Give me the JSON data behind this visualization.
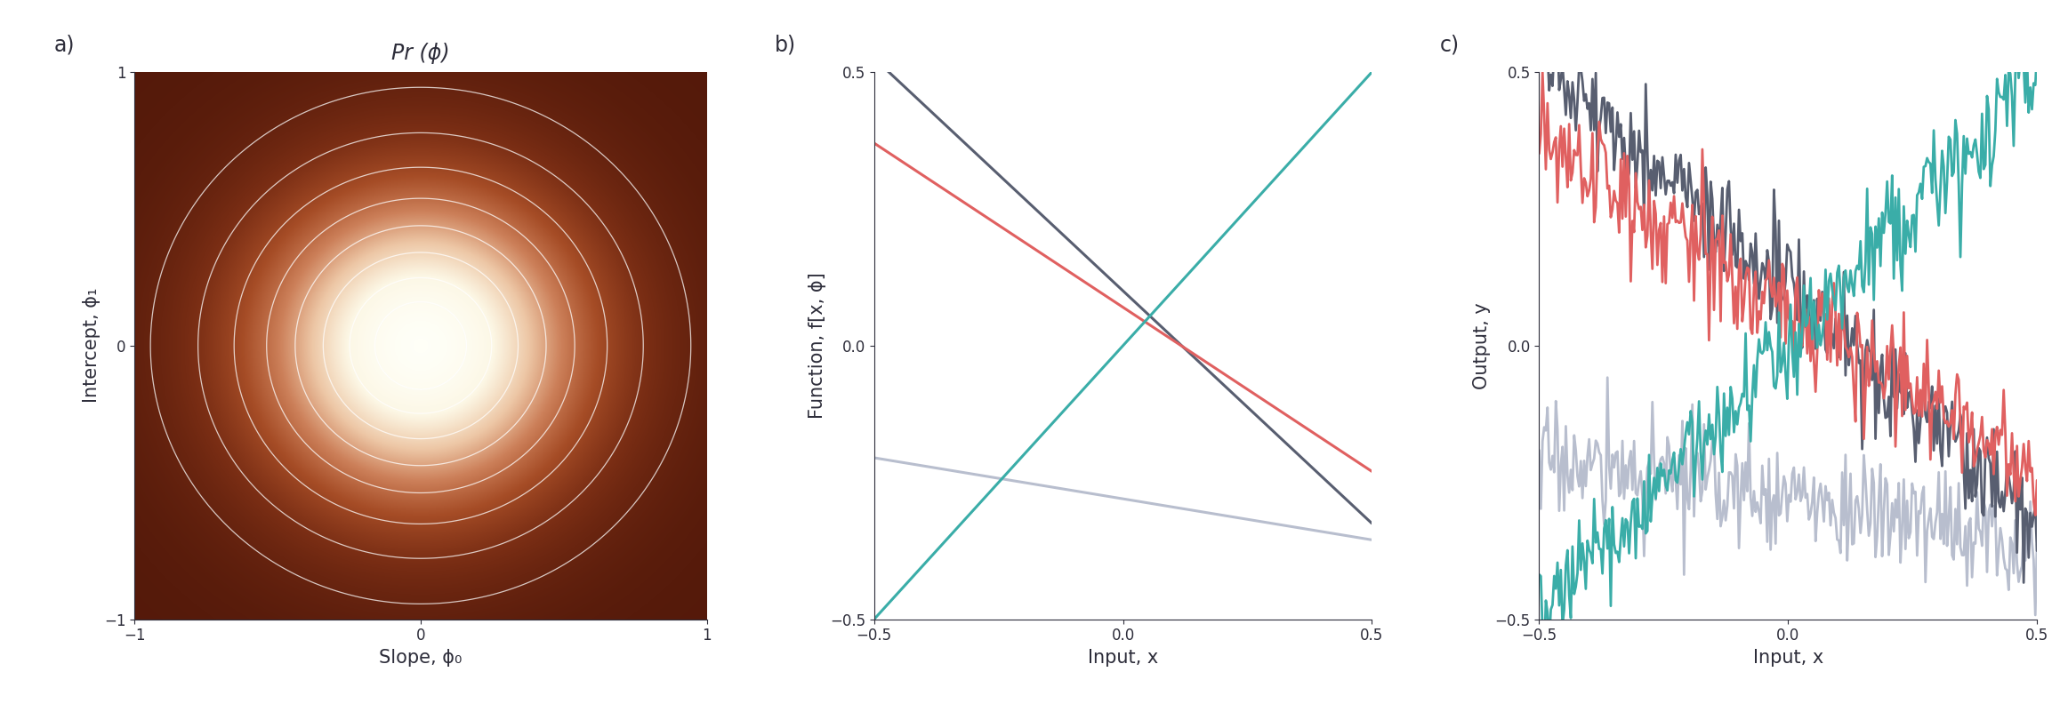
{
  "title": "Pr (ϕ)",
  "panel_a_xlabel": "Slope, ϕ₀",
  "panel_a_ylabel": "Intercept, ϕ₁",
  "panel_a_xlim": [
    -1.0,
    1.0
  ],
  "panel_a_ylim": [
    -1.0,
    1.0
  ],
  "panel_a_xticks": [
    -1.0,
    0.0,
    1.0
  ],
  "panel_a_yticks": [
    -1.0,
    0.0,
    1.0
  ],
  "panel_b_xlabel": "Input, x",
  "panel_b_ylabel": "Function, f[x, ϕ]",
  "panel_b_xlim": [
    -0.5,
    0.5
  ],
  "panel_b_ylim": [
    -0.5,
    0.5
  ],
  "panel_b_xticks": [
    -0.5,
    0.0,
    0.5
  ],
  "panel_b_yticks": [
    -0.5,
    0.0,
    0.5
  ],
  "panel_c_xlabel": "Input, x",
  "panel_c_ylabel": "Output, y",
  "panel_c_xlim": [
    -0.5,
    0.5
  ],
  "panel_c_ylim": [
    -0.5,
    0.5
  ],
  "panel_c_xticks": [
    -0.5,
    0.0,
    0.5
  ],
  "panel_c_yticks": [
    -0.5,
    0.0,
    0.5
  ],
  "line_colors": [
    "#3aada8",
    "#e06060",
    "#b8bece",
    "#585e70"
  ],
  "line_params": [
    {
      "phi0": 1.0,
      "phi1": 0.0
    },
    {
      "phi0": -0.6,
      "phi1": 0.07
    },
    {
      "phi0": -0.15,
      "phi1": -0.28
    },
    {
      "phi0": -0.85,
      "phi1": 0.1
    }
  ],
  "noise_std": 0.05,
  "background_color": "#ffffff",
  "sigma": 0.42,
  "random_seed": 17
}
